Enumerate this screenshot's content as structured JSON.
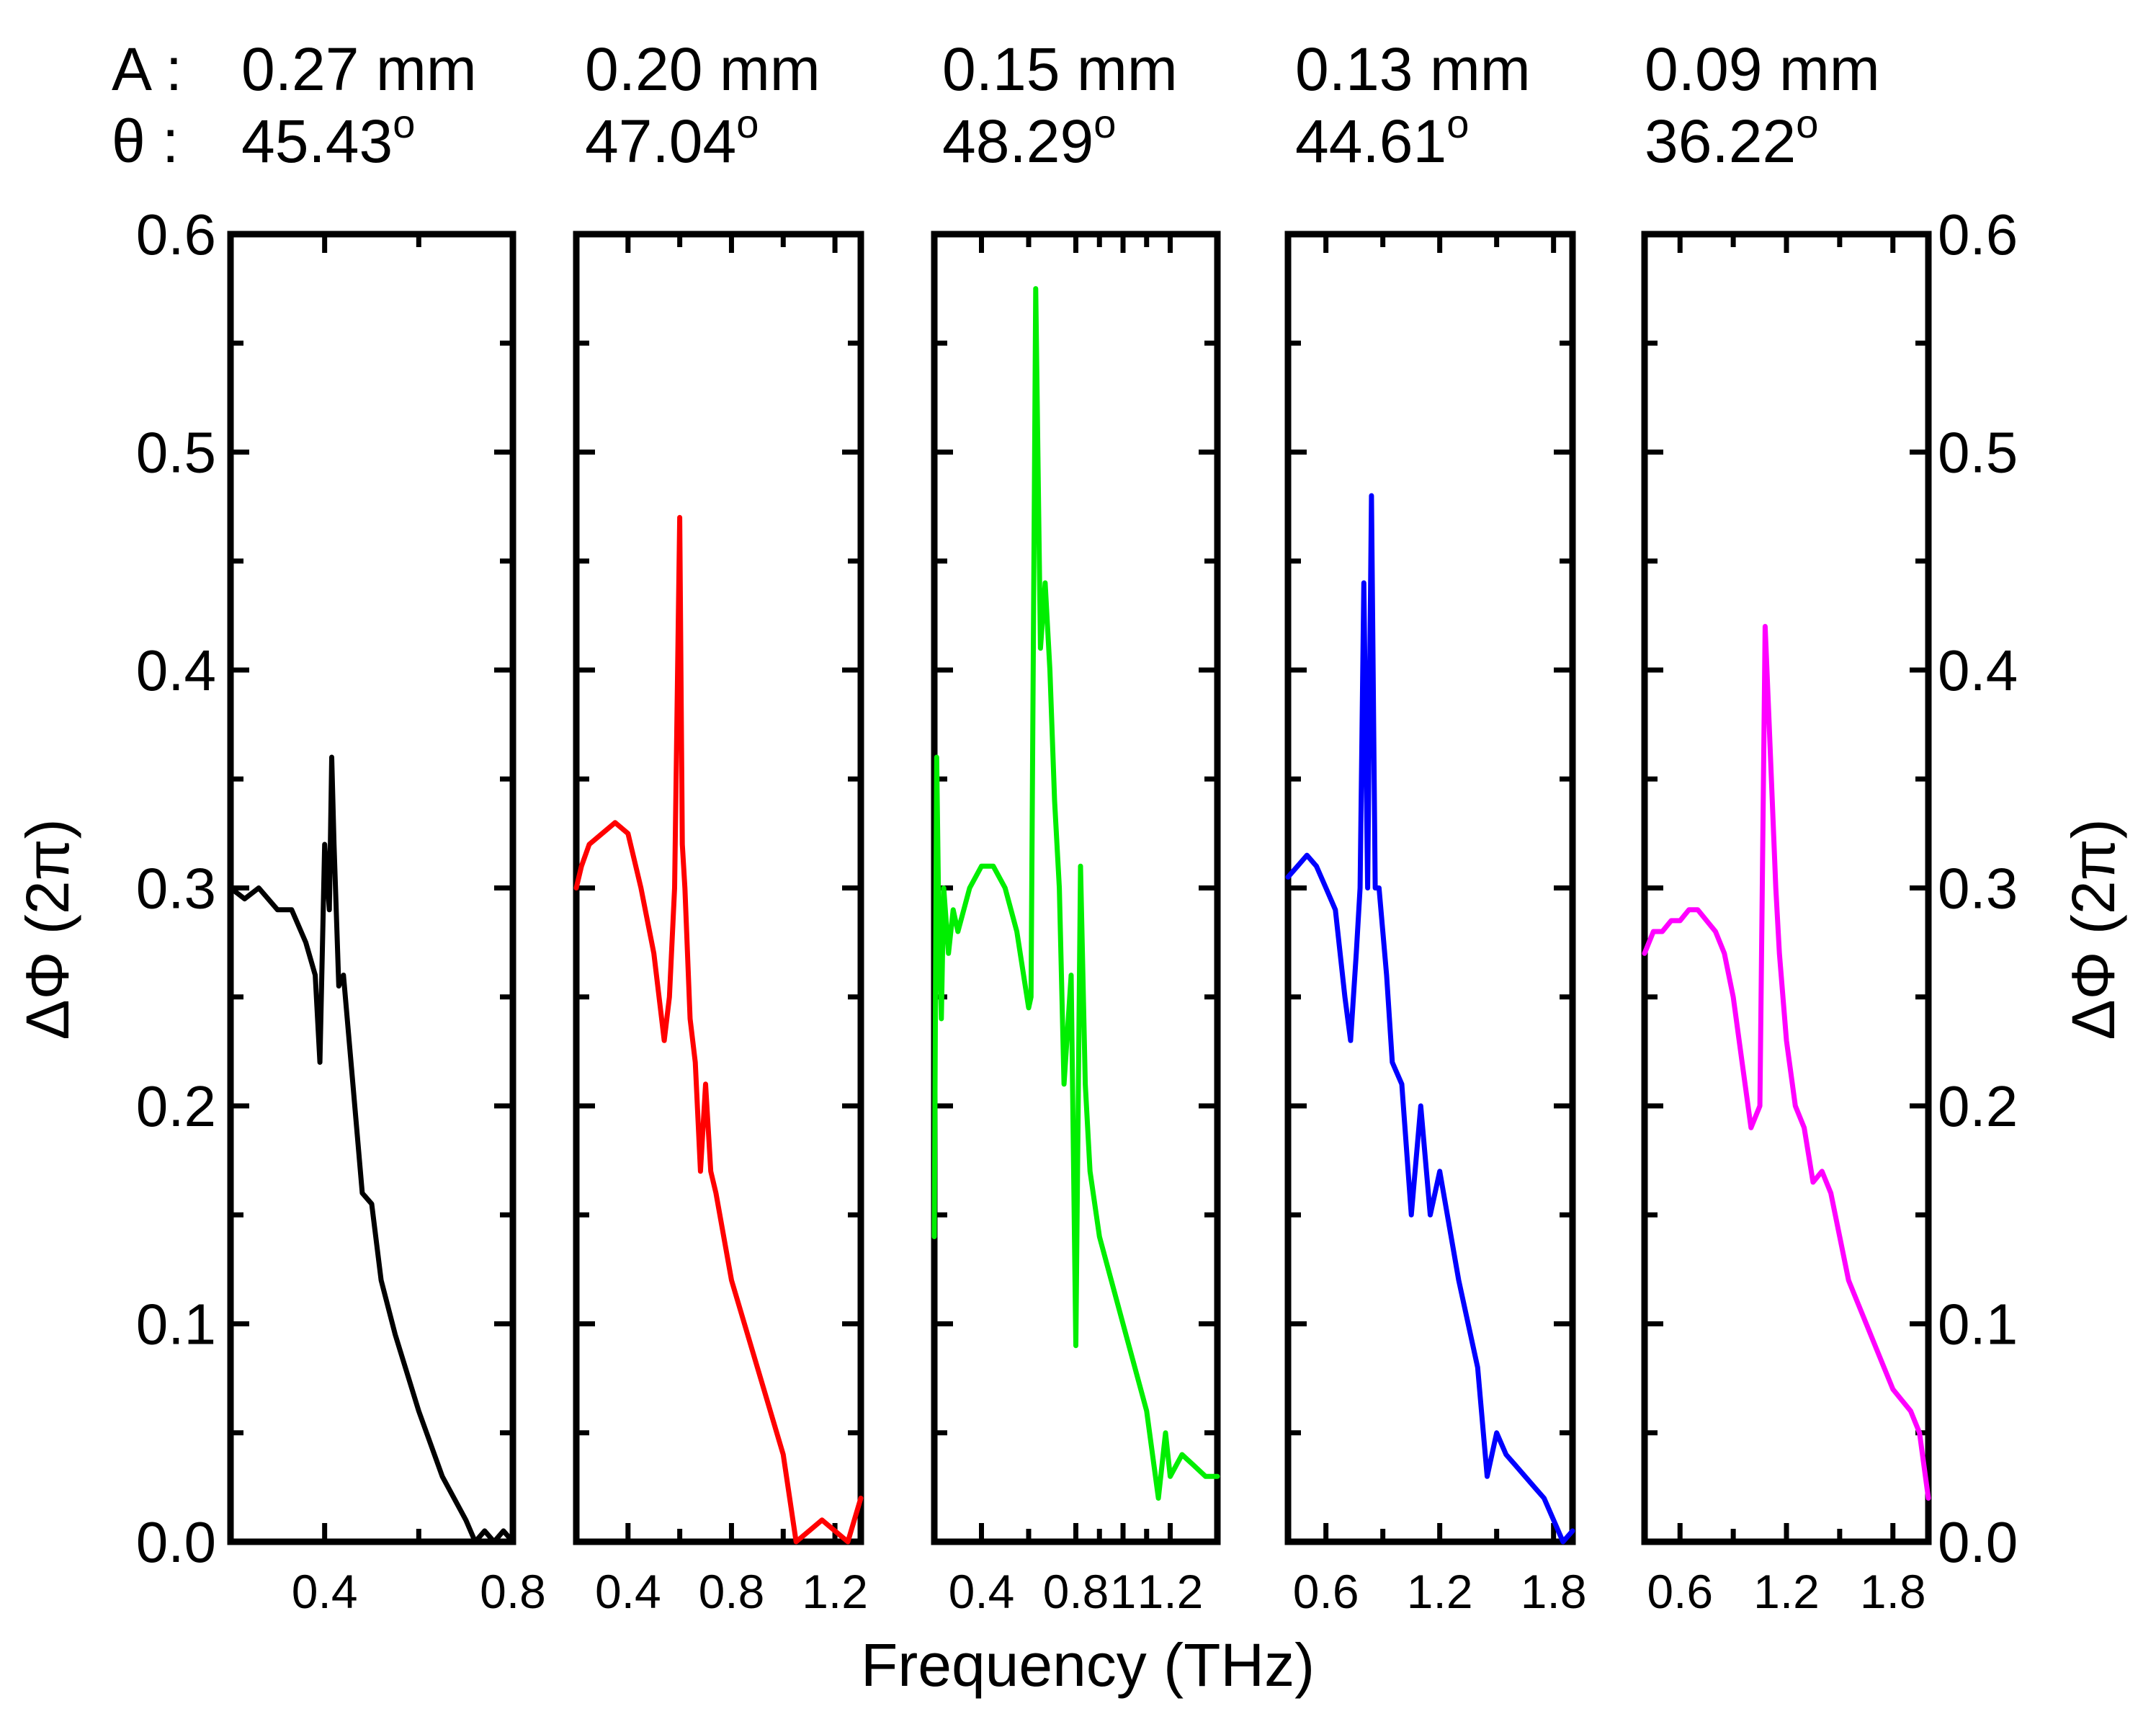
{
  "chart_data": {
    "type": "line",
    "xlabel": "Frequency (THz)",
    "ylabel": "ΔΦ (2π)",
    "ylim": [
      0.0,
      0.6
    ],
    "ytick_labels": [
      "0.0",
      "0.1",
      "0.2",
      "0.3",
      "0.4",
      "0.5",
      "0.6"
    ],
    "header_prefix": {
      "A": "A :",
      "theta": "θ :"
    },
    "panels": [
      {
        "name": "panel-1",
        "A": "0.27 mm",
        "theta_value": "45.43",
        "theta_unit": "o",
        "color": "#000000",
        "xlim": [
          0.2,
          0.8
        ],
        "xticks": [
          {
            "v": 0.4,
            "label": "0.4"
          },
          {
            "v": 0.8,
            "label": "0.8"
          }
        ],
        "x": [
          0.2,
          0.23,
          0.26,
          0.3,
          0.33,
          0.36,
          0.38,
          0.39,
          0.4,
          0.41,
          0.415,
          0.42,
          0.43,
          0.44,
          0.46,
          0.48,
          0.5,
          0.52,
          0.55,
          0.6,
          0.65,
          0.7,
          0.72,
          0.74,
          0.76,
          0.78,
          0.8
        ],
        "y": [
          0.3,
          0.295,
          0.3,
          0.29,
          0.29,
          0.275,
          0.26,
          0.22,
          0.32,
          0.29,
          0.36,
          0.32,
          0.255,
          0.26,
          0.21,
          0.16,
          0.155,
          0.12,
          0.095,
          0.06,
          0.03,
          0.01,
          0.0,
          0.005,
          0.0,
          0.005,
          0.0
        ]
      },
      {
        "name": "panel-2",
        "A": "0.20 mm",
        "theta_value": "47.04",
        "theta_unit": "o",
        "color": "#ff0000",
        "xlim": [
          0.2,
          1.3
        ],
        "xticks": [
          {
            "v": 0.4,
            "label": "0.4"
          },
          {
            "v": 0.8,
            "label": "0.8"
          },
          {
            "v": 1.2,
            "label": "1.2"
          }
        ],
        "x": [
          0.2,
          0.22,
          0.25,
          0.3,
          0.35,
          0.4,
          0.45,
          0.5,
          0.54,
          0.56,
          0.58,
          0.6,
          0.61,
          0.62,
          0.64,
          0.66,
          0.68,
          0.7,
          0.72,
          0.74,
          0.8,
          0.9,
          1.0,
          1.05,
          1.1,
          1.15,
          1.2,
          1.25,
          1.3
        ],
        "y": [
          0.3,
          0.31,
          0.32,
          0.325,
          0.33,
          0.325,
          0.3,
          0.27,
          0.23,
          0.25,
          0.3,
          0.47,
          0.32,
          0.3,
          0.24,
          0.22,
          0.17,
          0.21,
          0.17,
          0.16,
          0.12,
          0.08,
          0.04,
          0.0,
          0.005,
          0.01,
          0.005,
          0.0,
          0.02
        ]
      },
      {
        "name": "panel-3",
        "A": "0.15 mm",
        "theta_value": "48.29",
        "theta_unit": "o",
        "color": "#00ee00",
        "xlim": [
          0.2,
          1.4
        ],
        "xticks": [
          {
            "v": 0.4,
            "label": "0.4"
          },
          {
            "v": 0.8,
            "label": "0.8"
          },
          {
            "v": 1.0,
            "label": "1"
          },
          {
            "v": 1.2,
            "label": "1.2"
          }
        ],
        "x": [
          0.2,
          0.21,
          0.22,
          0.23,
          0.24,
          0.26,
          0.28,
          0.3,
          0.35,
          0.4,
          0.45,
          0.5,
          0.55,
          0.6,
          0.61,
          0.63,
          0.65,
          0.67,
          0.69,
          0.71,
          0.73,
          0.75,
          0.78,
          0.8,
          0.82,
          0.84,
          0.86,
          0.9,
          1.0,
          1.1,
          1.15,
          1.18,
          1.2,
          1.25,
          1.3,
          1.35,
          1.4
        ],
        "y": [
          0.14,
          0.36,
          0.28,
          0.24,
          0.3,
          0.27,
          0.29,
          0.28,
          0.3,
          0.31,
          0.31,
          0.3,
          0.28,
          0.245,
          0.25,
          0.575,
          0.41,
          0.44,
          0.4,
          0.34,
          0.3,
          0.21,
          0.26,
          0.09,
          0.31,
          0.21,
          0.17,
          0.14,
          0.1,
          0.06,
          0.02,
          0.05,
          0.03,
          0.04,
          0.035,
          0.03,
          0.03
        ]
      },
      {
        "name": "panel-4",
        "A": "0.13 mm",
        "theta_value": "44.61",
        "theta_unit": "o",
        "color": "#0000ff",
        "xlim": [
          0.4,
          1.9
        ],
        "xticks": [
          {
            "v": 0.6,
            "label": "0.6"
          },
          {
            "v": 1.2,
            "label": "1.2"
          },
          {
            "v": 1.8,
            "label": "1.8"
          }
        ],
        "x": [
          0.4,
          0.45,
          0.5,
          0.55,
          0.6,
          0.65,
          0.7,
          0.73,
          0.76,
          0.78,
          0.8,
          0.82,
          0.84,
          0.86,
          0.88,
          0.92,
          0.95,
          1.0,
          1.05,
          1.1,
          1.15,
          1.2,
          1.3,
          1.4,
          1.45,
          1.5,
          1.55,
          1.6,
          1.65,
          1.7,
          1.75,
          1.8,
          1.85,
          1.9
        ],
        "y": [
          0.305,
          0.31,
          0.315,
          0.31,
          0.3,
          0.29,
          0.25,
          0.23,
          0.27,
          0.3,
          0.44,
          0.3,
          0.48,
          0.3,
          0.3,
          0.26,
          0.22,
          0.21,
          0.15,
          0.2,
          0.15,
          0.17,
          0.12,
          0.08,
          0.03,
          0.05,
          0.04,
          0.035,
          0.03,
          0.025,
          0.02,
          0.01,
          0.0,
          0.005
        ]
      },
      {
        "name": "panel-5",
        "A": "0.09 mm",
        "theta_value": "36.22",
        "theta_unit": "o",
        "color": "#ff00ff",
        "xlim": [
          0.4,
          2.0
        ],
        "xticks": [
          {
            "v": 0.6,
            "label": "0.6"
          },
          {
            "v": 1.2,
            "label": "1.2"
          },
          {
            "v": 1.8,
            "label": "1.8"
          }
        ],
        "x": [
          0.4,
          0.45,
          0.5,
          0.55,
          0.6,
          0.65,
          0.7,
          0.75,
          0.8,
          0.85,
          0.9,
          0.95,
          1.0,
          1.05,
          1.08,
          1.1,
          1.12,
          1.14,
          1.16,
          1.2,
          1.25,
          1.3,
          1.35,
          1.4,
          1.45,
          1.5,
          1.55,
          1.6,
          1.65,
          1.7,
          1.75,
          1.8,
          1.85,
          1.9,
          1.95,
          2.0
        ],
        "y": [
          0.27,
          0.28,
          0.28,
          0.285,
          0.285,
          0.29,
          0.29,
          0.285,
          0.28,
          0.27,
          0.25,
          0.22,
          0.19,
          0.2,
          0.42,
          0.38,
          0.34,
          0.3,
          0.27,
          0.23,
          0.2,
          0.19,
          0.165,
          0.17,
          0.16,
          0.14,
          0.12,
          0.11,
          0.1,
          0.09,
          0.08,
          0.07,
          0.065,
          0.06,
          0.05,
          0.02
        ]
      }
    ]
  }
}
